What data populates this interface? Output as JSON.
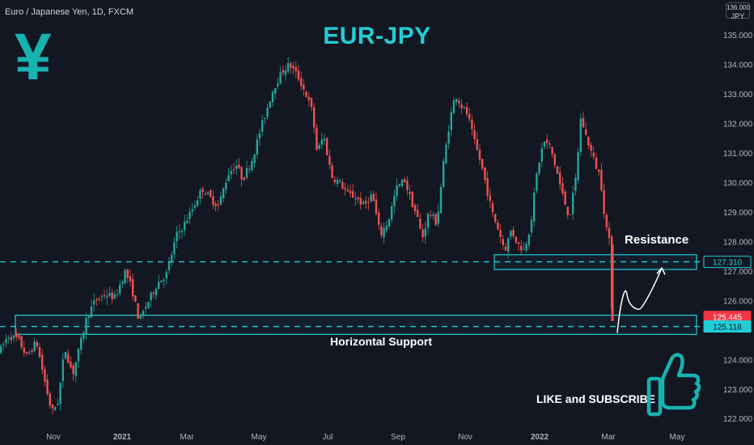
{
  "header": {
    "symbol_line": "Euro / Japanese Yen, 1D, FXCM"
  },
  "title": "EUR-JPY",
  "yen_glyph": "¥",
  "currency_badge": {
    "top": "136.000",
    "code": "JPY"
  },
  "annotations": {
    "resistance": "Resistance",
    "support": "Horizontal Support",
    "like_subscribe": "LIKE and SUBSCRIBE"
  },
  "icons": {
    "currency": "yen-icon",
    "like": "thumbs-up-icon"
  },
  "colors": {
    "up": "#26a69a",
    "down": "#ef5350",
    "accent": "#21cdd6",
    "background": "#131722",
    "price_tag": "#f23645"
  },
  "chart_data": {
    "type": "candlestick",
    "title": "EUR-JPY",
    "ylim": [
      121.65,
      136.1
    ],
    "y_ticks": [
      "135.000",
      "134.000",
      "133.000",
      "132.000",
      "131.000",
      "130.000",
      "129.000",
      "128.000",
      "127.000",
      "126.000",
      "124.000",
      "123.000",
      "122.000"
    ],
    "x_ticks": [
      "Nov",
      "2021",
      "Mar",
      "May",
      "Jul",
      "Sep",
      "Nov",
      "2022",
      "Mar",
      "May"
    ],
    "levels": [
      {
        "name": "resistance",
        "value": 127.31,
        "label": "127.310",
        "zone": [
          127.05,
          127.55
        ]
      },
      {
        "name": "support",
        "value": 125.118,
        "label": "125.118",
        "zone": [
          124.85,
          125.5
        ]
      }
    ],
    "last_price": {
      "value": 125.445,
      "label": "125.445"
    },
    "path_points": [
      [
        0,
        124.3
      ],
      [
        10,
        124.8
      ],
      [
        22,
        124.7
      ],
      [
        33,
        124.1
      ],
      [
        45,
        124.6
      ],
      [
        55,
        123.3
      ],
      [
        64,
        122.2
      ],
      [
        72,
        122.6
      ],
      [
        80,
        124.4
      ],
      [
        90,
        123.5
      ],
      [
        100,
        124.6
      ],
      [
        108,
        125.5
      ],
      [
        118,
        126.0
      ],
      [
        130,
        126.2
      ],
      [
        142,
        126.1
      ],
      [
        155,
        127.0
      ],
      [
        163,
        126.4
      ],
      [
        172,
        125.3
      ],
      [
        182,
        125.9
      ],
      [
        195,
        126.6
      ],
      [
        206,
        126.9
      ],
      [
        218,
        128.2
      ],
      [
        226,
        128.5
      ],
      [
        236,
        129.0
      ],
      [
        250,
        129.8
      ],
      [
        262,
        129.4
      ],
      [
        270,
        129.2
      ],
      [
        282,
        130.3
      ],
      [
        292,
        130.6
      ],
      [
        300,
        130.1
      ],
      [
        312,
        130.8
      ],
      [
        322,
        131.8
      ],
      [
        330,
        132.5
      ],
      [
        338,
        133.2
      ],
      [
        350,
        133.8
      ],
      [
        358,
        134.0
      ],
      [
        368,
        133.6
      ],
      [
        378,
        133.0
      ],
      [
        386,
        132.4
      ],
      [
        392,
        131.0
      ],
      [
        400,
        131.6
      ],
      [
        410,
        130.2
      ],
      [
        420,
        130.0
      ],
      [
        430,
        129.6
      ],
      [
        440,
        129.5
      ],
      [
        450,
        129.2
      ],
      [
        460,
        129.6
      ],
      [
        470,
        128.2
      ],
      [
        480,
        128.7
      ],
      [
        490,
        129.8
      ],
      [
        500,
        130.1
      ],
      [
        508,
        129.4
      ],
      [
        516,
        128.8
      ],
      [
        522,
        128.1
      ],
      [
        530,
        129.0
      ],
      [
        540,
        128.6
      ],
      [
        548,
        130.6
      ],
      [
        556,
        132.1
      ],
      [
        563,
        133.0
      ],
      [
        570,
        132.6
      ],
      [
        578,
        132.3
      ],
      [
        586,
        131.4
      ],
      [
        594,
        130.7
      ],
      [
        600,
        130.0
      ],
      [
        608,
        129.0
      ],
      [
        616,
        128.4
      ],
      [
        624,
        127.7
      ],
      [
        632,
        128.4
      ],
      [
        640,
        127.9
      ],
      [
        648,
        127.7
      ],
      [
        656,
        128.6
      ],
      [
        664,
        130.4
      ],
      [
        672,
        131.4
      ],
      [
        680,
        131.2
      ],
      [
        688,
        130.4
      ],
      [
        696,
        129.5
      ],
      [
        704,
        128.8
      ],
      [
        712,
        130.2
      ],
      [
        718,
        132.2
      ],
      [
        724,
        131.6
      ],
      [
        730,
        131.1
      ],
      [
        736,
        130.6
      ],
      [
        742,
        130.2
      ],
      [
        748,
        128.7
      ],
      [
        753,
        128.0
      ],
      [
        757,
        125.3
      ],
      [
        761,
        125.45
      ]
    ],
    "projection_points": [
      [
        763,
        124.9
      ],
      [
        775,
        126.2
      ],
      [
        790,
        125.7
      ],
      [
        805,
        126.5
      ],
      [
        818,
        127.1
      ]
    ]
  }
}
